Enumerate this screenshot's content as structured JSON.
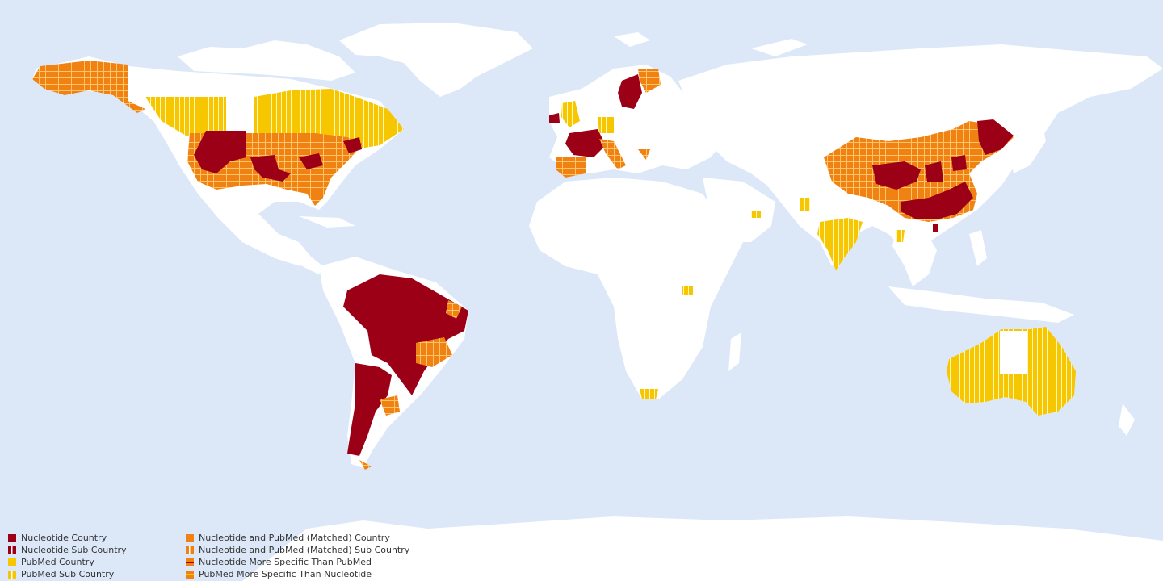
{
  "colors": {
    "ocean": "#dce8f8",
    "land": "#ffffff",
    "nucleotide": "#9b0016",
    "matched": "#f08214",
    "pubmed": "#f6c700",
    "grid_light": "#ffe38a"
  },
  "legend": {
    "items": [
      {
        "label": "Nucleotide Country",
        "swatch": "nuc-country"
      },
      {
        "label": "Nucleotide Sub Country",
        "swatch": "nuc-sub"
      },
      {
        "label": "PubMed Country",
        "swatch": "pub-country"
      },
      {
        "label": "PubMed  Sub Country",
        "swatch": "pub-sub"
      },
      {
        "label": "Nucleotide and PubMed (Matched) Country",
        "swatch": "matched-country"
      },
      {
        "label": "Nucleotide and PubMed (Matched) Sub Country",
        "swatch": "matched-sub"
      },
      {
        "label": "Nucleotide More Specific Than PubMed",
        "swatch": "nuc-more"
      },
      {
        "label": "PubMed More Specific Than Nucleotide",
        "swatch": "pub-more"
      }
    ]
  }
}
